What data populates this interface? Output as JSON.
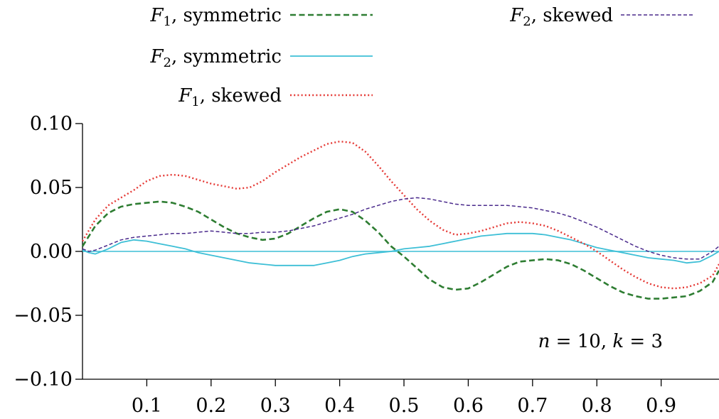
{
  "chart_data": {
    "type": "line",
    "title": "",
    "xlabel": "",
    "ylabel": "",
    "xlim": [
      0,
      0.99
    ],
    "ylim": [
      -0.1,
      0.1
    ],
    "xticks": [
      0.1,
      0.2,
      0.3,
      0.4,
      0.5,
      0.6,
      0.7,
      0.8,
      0.9
    ],
    "xtick_labels": [
      "0.1",
      "0.2",
      "0.3",
      "0.4",
      "0.5",
      "0.6",
      "0.7",
      "0.8",
      "0.9"
    ],
    "yticks": [
      -0.1,
      -0.05,
      0.0,
      0.05,
      0.1
    ],
    "ytick_labels": [
      "−0.10",
      "−0.05",
      "0.00",
      "0.05",
      "0.10"
    ],
    "grid": false,
    "legend_position": "top",
    "annotation": {
      "n": "10",
      "k": "3"
    },
    "zero_line": true,
    "series": [
      {
        "name_main": "F",
        "name_sub": "1",
        "name_rest": ", symmetric",
        "color": "#2e7d32",
        "style": "dashed",
        "x": [
          0.0,
          0.02,
          0.04,
          0.06,
          0.08,
          0.1,
          0.12,
          0.14,
          0.16,
          0.18,
          0.2,
          0.22,
          0.24,
          0.26,
          0.28,
          0.3,
          0.32,
          0.34,
          0.36,
          0.38,
          0.4,
          0.42,
          0.44,
          0.46,
          0.48,
          0.5,
          0.52,
          0.54,
          0.56,
          0.58,
          0.6,
          0.62,
          0.64,
          0.66,
          0.68,
          0.7,
          0.72,
          0.74,
          0.76,
          0.78,
          0.8,
          0.82,
          0.84,
          0.86,
          0.88,
          0.9,
          0.92,
          0.94,
          0.96,
          0.98,
          0.99
        ],
        "y": [
          0.004,
          0.02,
          0.03,
          0.035,
          0.037,
          0.038,
          0.039,
          0.038,
          0.035,
          0.031,
          0.025,
          0.019,
          0.014,
          0.011,
          0.009,
          0.01,
          0.014,
          0.02,
          0.026,
          0.031,
          0.033,
          0.031,
          0.024,
          0.015,
          0.004,
          -0.004,
          -0.013,
          -0.022,
          -0.028,
          -0.03,
          -0.029,
          -0.024,
          -0.018,
          -0.012,
          -0.008,
          -0.007,
          -0.006,
          -0.007,
          -0.01,
          -0.015,
          -0.021,
          -0.027,
          -0.032,
          -0.035,
          -0.037,
          -0.037,
          -0.036,
          -0.035,
          -0.031,
          -0.024,
          -0.015
        ]
      },
      {
        "name_main": "F",
        "name_sub": "2",
        "name_rest": ", symmetric",
        "color": "#3dbfd6",
        "style": "solid",
        "x": [
          0.0,
          0.01,
          0.02,
          0.04,
          0.06,
          0.08,
          0.1,
          0.12,
          0.14,
          0.16,
          0.18,
          0.2,
          0.22,
          0.24,
          0.26,
          0.28,
          0.3,
          0.32,
          0.34,
          0.36,
          0.38,
          0.4,
          0.42,
          0.44,
          0.46,
          0.48,
          0.5,
          0.52,
          0.54,
          0.56,
          0.58,
          0.6,
          0.62,
          0.64,
          0.66,
          0.68,
          0.7,
          0.72,
          0.74,
          0.76,
          0.78,
          0.8,
          0.82,
          0.84,
          0.86,
          0.88,
          0.9,
          0.92,
          0.94,
          0.96,
          0.98,
          0.99
        ],
        "y": [
          0.001,
          -0.001,
          -0.002,
          0.002,
          0.007,
          0.009,
          0.008,
          0.006,
          0.004,
          0.002,
          -0.001,
          -0.003,
          -0.005,
          -0.007,
          -0.009,
          -0.01,
          -0.011,
          -0.011,
          -0.011,
          -0.011,
          -0.009,
          -0.007,
          -0.004,
          -0.002,
          -0.001,
          0.0,
          0.002,
          0.003,
          0.004,
          0.006,
          0.008,
          0.01,
          0.012,
          0.013,
          0.014,
          0.014,
          0.014,
          0.013,
          0.011,
          0.009,
          0.006,
          0.003,
          0.001,
          -0.001,
          -0.003,
          -0.005,
          -0.006,
          -0.007,
          -0.009,
          -0.008,
          -0.003,
          0.0
        ]
      },
      {
        "name_main": "F",
        "name_sub": "1",
        "name_rest": ", skewed",
        "color": "#e53935",
        "style": "dotted",
        "x": [
          0.0,
          0.02,
          0.04,
          0.06,
          0.08,
          0.1,
          0.12,
          0.14,
          0.16,
          0.18,
          0.2,
          0.22,
          0.24,
          0.26,
          0.28,
          0.3,
          0.32,
          0.34,
          0.36,
          0.38,
          0.4,
          0.42,
          0.44,
          0.46,
          0.48,
          0.5,
          0.52,
          0.54,
          0.56,
          0.58,
          0.6,
          0.62,
          0.64,
          0.66,
          0.68,
          0.7,
          0.72,
          0.74,
          0.76,
          0.78,
          0.8,
          0.82,
          0.84,
          0.86,
          0.88,
          0.9,
          0.92,
          0.94,
          0.96,
          0.98,
          0.99
        ],
        "y": [
          0.008,
          0.025,
          0.036,
          0.042,
          0.048,
          0.055,
          0.059,
          0.06,
          0.059,
          0.056,
          0.053,
          0.051,
          0.049,
          0.05,
          0.055,
          0.062,
          0.068,
          0.074,
          0.079,
          0.084,
          0.086,
          0.085,
          0.078,
          0.067,
          0.055,
          0.044,
          0.033,
          0.024,
          0.017,
          0.013,
          0.014,
          0.016,
          0.019,
          0.022,
          0.023,
          0.022,
          0.02,
          0.016,
          0.011,
          0.006,
          0.0,
          -0.007,
          -0.014,
          -0.02,
          -0.025,
          -0.028,
          -0.029,
          -0.028,
          -0.025,
          -0.019,
          -0.01
        ]
      },
      {
        "name_main": "F",
        "name_sub": "2",
        "name_rest": ", skewed",
        "color": "#4a2a8c",
        "style": "dashed-fine",
        "x": [
          0.0,
          0.01,
          0.02,
          0.04,
          0.06,
          0.08,
          0.1,
          0.12,
          0.14,
          0.16,
          0.18,
          0.2,
          0.22,
          0.24,
          0.26,
          0.28,
          0.3,
          0.32,
          0.34,
          0.36,
          0.38,
          0.4,
          0.42,
          0.44,
          0.46,
          0.48,
          0.5,
          0.52,
          0.54,
          0.56,
          0.58,
          0.6,
          0.62,
          0.64,
          0.66,
          0.68,
          0.7,
          0.72,
          0.74,
          0.76,
          0.78,
          0.8,
          0.82,
          0.84,
          0.86,
          0.88,
          0.9,
          0.92,
          0.94,
          0.96,
          0.98,
          0.99
        ],
        "y": [
          0.002,
          0.0,
          0.001,
          0.005,
          0.009,
          0.011,
          0.012,
          0.013,
          0.014,
          0.014,
          0.015,
          0.016,
          0.015,
          0.014,
          0.014,
          0.015,
          0.015,
          0.016,
          0.018,
          0.02,
          0.023,
          0.026,
          0.029,
          0.033,
          0.036,
          0.039,
          0.041,
          0.042,
          0.041,
          0.039,
          0.037,
          0.036,
          0.036,
          0.036,
          0.036,
          0.035,
          0.034,
          0.032,
          0.03,
          0.027,
          0.023,
          0.019,
          0.014,
          0.009,
          0.004,
          0.0,
          -0.003,
          -0.005,
          -0.006,
          -0.006,
          0.0,
          0.004
        ]
      }
    ]
  }
}
